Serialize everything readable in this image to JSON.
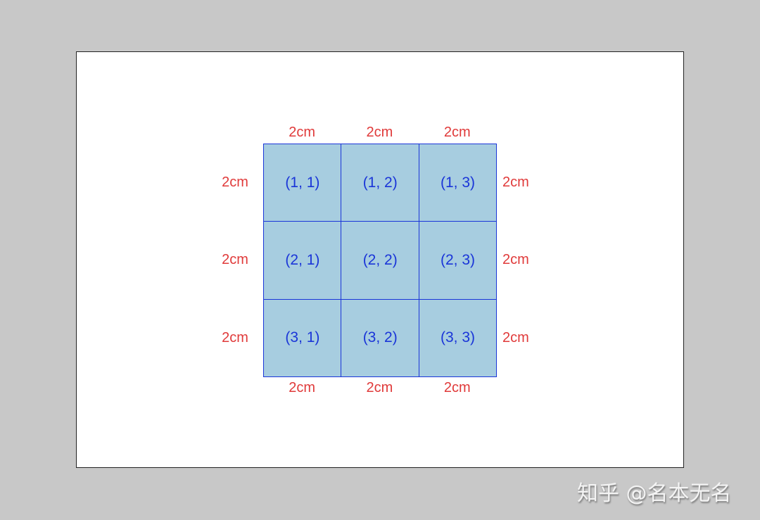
{
  "grid": {
    "rows": 3,
    "cols": 3,
    "cells": [
      [
        "(1, 1)",
        "(1, 2)",
        "(1, 3)"
      ],
      [
        "(2, 1)",
        "(2, 2)",
        "(2, 3)"
      ],
      [
        "(3, 1)",
        "(3, 2)",
        "(3, 3)"
      ]
    ],
    "top_labels": [
      "2cm",
      "2cm",
      "2cm"
    ],
    "bottom_labels": [
      "2cm",
      "2cm",
      "2cm"
    ],
    "left_labels": [
      "2cm",
      "2cm",
      "2cm"
    ],
    "right_labels": [
      "2cm",
      "2cm",
      "2cm"
    ]
  },
  "colors": {
    "cell_fill": "#a7cde0",
    "cell_border": "#1a35d8",
    "dimension_text": "#e03a3a",
    "background": "#c8c8c8"
  },
  "watermark": "知乎 @名本无名"
}
